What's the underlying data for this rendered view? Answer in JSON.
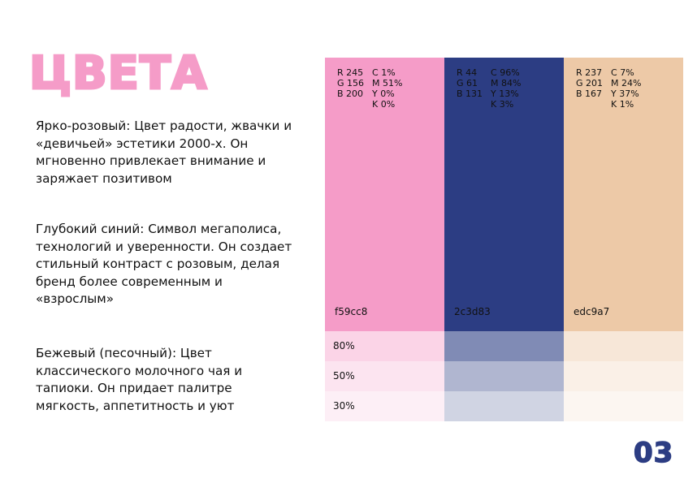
{
  "title": "ЦВЕТА",
  "paragraphs": [
    "Ярко-розовый: Цвет радости, жвачки и «девичьей» эстетики 2000-х. Он мгновенно привлекает внимание и заряжает позитивом",
    "Глубокий синий: Символ мегаполиса, технологий и уверенности. Он создает стильный контраст с розовым, делая бренд более современным и «взрослым»",
    "Бежевый (песочный): Цвет классического молочного чая и тапиоки. Он придает палитре мягкость, аппетитность и уют"
  ],
  "colors": [
    {
      "name": "pink",
      "hex_color": "#f59cc8",
      "rgb": [
        "R 245",
        "G 156",
        "B 200"
      ],
      "cmyk": [
        "C 1%",
        "M 51%",
        "Y 0%",
        "K 0%"
      ],
      "hex": "f59cc8"
    },
    {
      "name": "blue",
      "hex_color": "#2c3d83",
      "rgb": [
        "R 44",
        "G 61",
        "B 131"
      ],
      "cmyk": [
        "C 96%",
        "M 84%",
        "Y 13%",
        "K 3%"
      ],
      "hex": "2c3d83"
    },
    {
      "name": "beige",
      "hex_color": "#edc9a7",
      "rgb": [
        "R 237",
        "G 201",
        "B 167"
      ],
      "cmyk": [
        "C 7%",
        "M 24%",
        "Y 37%",
        "K 1%"
      ],
      "hex": "edc9a7"
    }
  ],
  "tints": [
    {
      "label": "80%",
      "value": 0.8
    },
    {
      "label": "50%",
      "value": 0.5
    },
    {
      "label": "30%",
      "value": 0.3
    }
  ],
  "page_number": "03"
}
